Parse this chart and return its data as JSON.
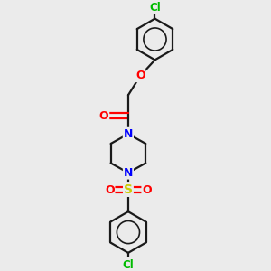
{
  "background_color": "#ebebeb",
  "bond_color": "#1a1a1a",
  "bond_width": 1.6,
  "atom_colors": {
    "N": "#0000ff",
    "O": "#ff0000",
    "S": "#cccc00",
    "Cl": "#00bb00"
  },
  "fig_width": 3.0,
  "fig_height": 3.0,
  "dpi": 100,
  "xlim": [
    -3.5,
    3.5
  ],
  "ylim": [
    -5.2,
    5.2
  ]
}
